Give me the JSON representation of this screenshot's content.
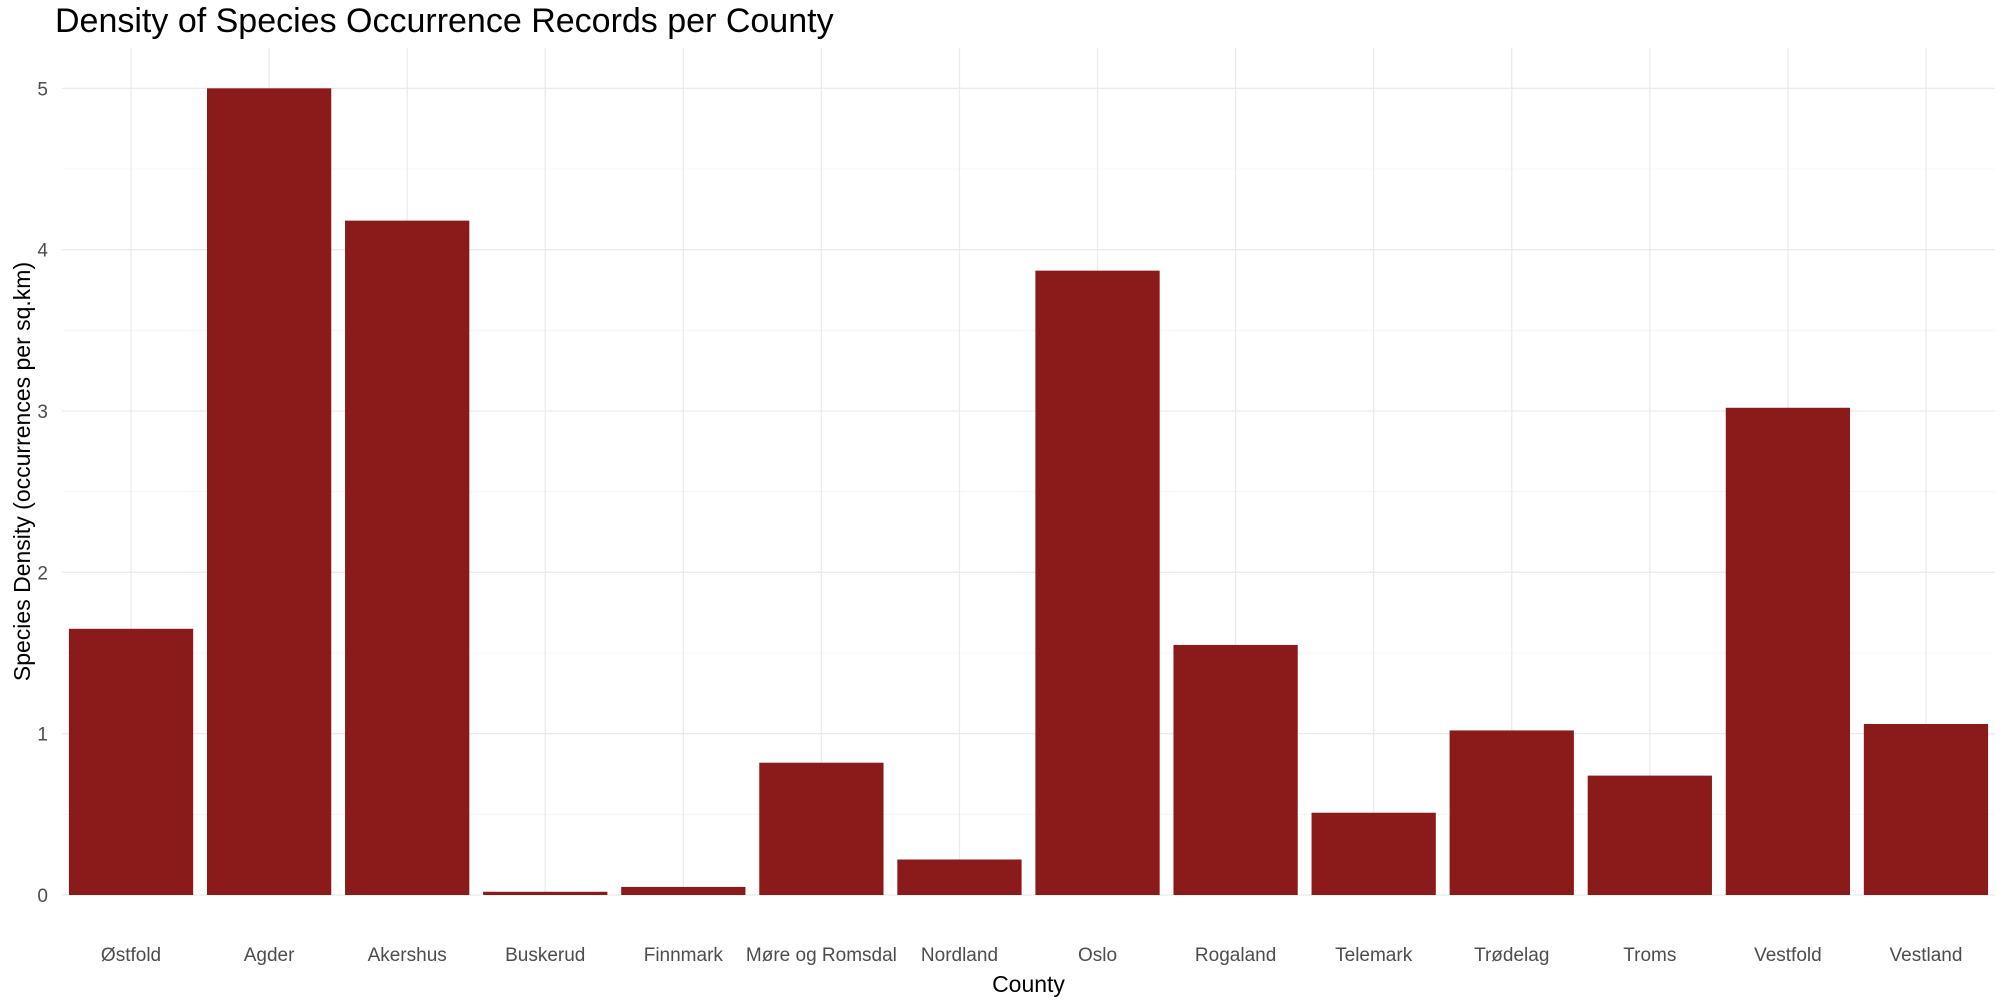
{
  "chart_data": {
    "type": "bar",
    "title": "Density of Species Occurrence Records per County",
    "xlabel": "County",
    "ylabel": "Species Density (occurrences per sq.km)",
    "categories": [
      "Østfold",
      "Agder",
      "Akershus",
      "Buskerud",
      "Finnmark",
      "Møre og Romsdal",
      "Nordland",
      "Oslo",
      "Rogaland",
      "Telemark",
      "Trødelag",
      "Troms",
      "Vestfold",
      "Vestland"
    ],
    "values": [
      1.65,
      5.0,
      4.18,
      0.02,
      0.05,
      0.82,
      0.22,
      3.87,
      1.55,
      0.51,
      1.02,
      0.74,
      3.02,
      1.06
    ],
    "ylim": [
      0,
      5.25
    ],
    "yticks": [
      0,
      1,
      2,
      3,
      4,
      5
    ],
    "grid": true,
    "bar_color": "#8B1A1A",
    "legend": "none"
  }
}
